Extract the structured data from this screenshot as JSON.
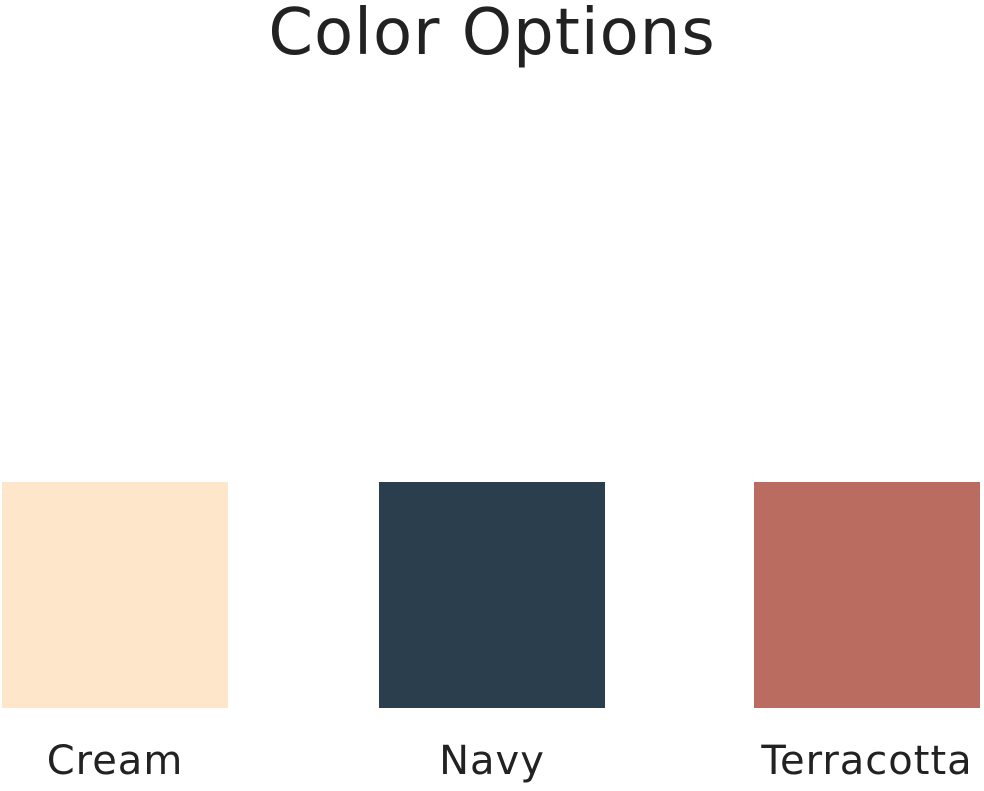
{
  "title": "Color Options",
  "options": [
    {
      "label": "Cream",
      "color": "#FDE6CA"
    },
    {
      "label": "Navy",
      "color": "#2A3E4D"
    },
    {
      "label": "Terracotta",
      "color": "#BB6C60"
    }
  ]
}
